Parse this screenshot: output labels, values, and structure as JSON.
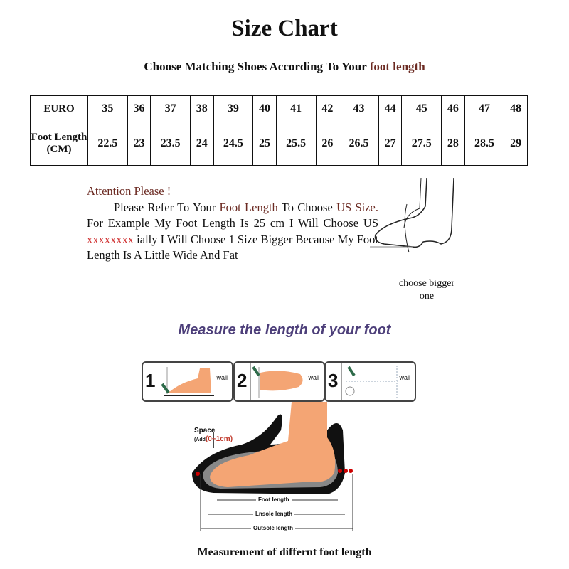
{
  "title": "Size Chart",
  "subtitle": {
    "prefix": "Choose Matching Shoes According To Your ",
    "highlight": "foot length"
  },
  "size_table": {
    "row_headers": [
      "EURO",
      "Foot Length (CM)"
    ],
    "euro": [
      "35",
      "36",
      "37",
      "38",
      "39",
      "40",
      "41",
      "42",
      "43",
      "44",
      "45",
      "46",
      "47",
      "48"
    ],
    "foot_length_cm": [
      "22.5",
      "23",
      "23.5",
      "24",
      "24.5",
      "25",
      "25.5",
      "26",
      "26.5",
      "27",
      "27.5",
      "28",
      "28.5",
      "29"
    ]
  },
  "attention": {
    "heading": "Attention Please !",
    "p1": "Please Refer To Your ",
    "p1_highlight": "Foot Length",
    "p2": " To Choose ",
    "p2_highlight": "US Size.",
    "p3": " For Example My Foot Length Is 25 cm I Will Choose US ",
    "p3_redacted": "xxxxxxxx",
    "p4": " ially I Will Choose 1 Size Bigger Because My Foot Length Is A Little Wide And Fat"
  },
  "choose_bigger": "choose bigger one",
  "measure_heading": "Measure the length of your foot",
  "steps": [
    {
      "number": "1",
      "label": "wall"
    },
    {
      "number": "2",
      "label": "wall"
    },
    {
      "number": "3",
      "label": "wall"
    }
  ],
  "diagram": {
    "space_label": "Space",
    "add_prefix": "(Add",
    "add_value": "(0~1cm)",
    "foot_length": "Foot length",
    "insole_length": "Lnsole length",
    "outsole_length": "Outsole length"
  },
  "bottom_caption": "Measurement of differnt foot length",
  "colors": {
    "accent": "#6b2a22",
    "heading": "#4d3f7a",
    "skin": "#f4a574",
    "redacted": "#d03030"
  }
}
